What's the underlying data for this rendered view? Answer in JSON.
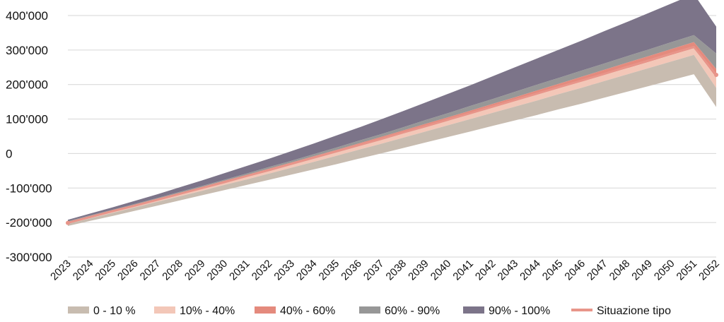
{
  "chart_data": {
    "type": "area",
    "grid": true,
    "legend_position": "bottom",
    "x": [
      2023,
      2024,
      2025,
      2026,
      2027,
      2028,
      2029,
      2030,
      2031,
      2032,
      2033,
      2034,
      2035,
      2036,
      2037,
      2038,
      2039,
      2040,
      2041,
      2042,
      2043,
      2044,
      2045,
      2046,
      2047,
      2048,
      2049,
      2050,
      2051,
      2052
    ],
    "x_tick_labels": [
      "2023",
      "2024",
      "2025",
      "2026",
      "2027",
      "2028",
      "2029",
      "2030",
      "2031",
      "2032",
      "2033",
      "2034",
      "2035",
      "2036",
      "2037",
      "2038",
      "2039",
      "2040",
      "2041",
      "2042",
      "2043",
      "2044",
      "2045",
      "2046",
      "2047",
      "2048",
      "2049",
      "2050",
      "2051",
      "2052"
    ],
    "ylim": [
      -300000,
      400000
    ],
    "y_ticks": [
      -300000,
      -200000,
      -100000,
      0,
      100000,
      200000,
      300000,
      400000
    ],
    "y_tick_labels": [
      "-300'000",
      "-200'000",
      "-100'000",
      "0",
      "100'000",
      "200'000",
      "300'000",
      "400'000"
    ],
    "bands": [
      {
        "name": "90% - 100%",
        "color": "#7c7489",
        "lower": [
          -196000,
          -179000,
          -163000,
          -146000,
          -129000,
          -111000,
          -94000,
          -76000,
          -58000,
          -39000,
          -21000,
          -2000,
          17000,
          37000,
          56000,
          76000,
          97000,
          117000,
          138000,
          158000,
          179000,
          200000,
          220000,
          241000,
          261000,
          282000,
          302000,
          323000,
          343000,
          290000
        ],
        "upper": [
          -192000,
          -174000,
          -156000,
          -137000,
          -118000,
          -98000,
          -78000,
          -57000,
          -36000,
          -15000,
          7000,
          29000,
          52000,
          75000,
          99000,
          123000,
          148000,
          173000,
          198000,
          224000,
          250000,
          276000,
          302000,
          328000,
          355000,
          381000,
          408000,
          435000,
          462000,
          368000
        ]
      },
      {
        "name": "60% - 90%",
        "color": "#979797",
        "lower": [
          -198000,
          -181000,
          -165000,
          -148000,
          -131000,
          -114000,
          -97000,
          -79000,
          -62000,
          -44000,
          -26000,
          -8000,
          10000,
          29000,
          48000,
          67000,
          86000,
          105000,
          124000,
          144000,
          163000,
          183000,
          203000,
          223000,
          243000,
          263000,
          283000,
          303000,
          323000,
          245000
        ],
        "upper": [
          -196000,
          -179000,
          -163000,
          -146000,
          -129000,
          -111000,
          -94000,
          -76000,
          -58000,
          -39000,
          -21000,
          -2000,
          17000,
          37000,
          56000,
          76000,
          97000,
          117000,
          138000,
          158000,
          179000,
          200000,
          220000,
          241000,
          261000,
          282000,
          302000,
          323000,
          343000,
          290000
        ]
      },
      {
        "name": "40% - 60%",
        "color": "#e48a7d",
        "lower": [
          -200000,
          -183000,
          -167000,
          -151000,
          -134000,
          -117000,
          -100000,
          -83000,
          -66000,
          -48000,
          -31000,
          -13000,
          5000,
          23000,
          41000,
          59000,
          77000,
          96000,
          115000,
          133000,
          152000,
          171000,
          190000,
          209000,
          228000,
          247000,
          266000,
          286000,
          305000,
          220000
        ],
        "upper": [
          -198000,
          -181000,
          -165000,
          -148000,
          -131000,
          -114000,
          -97000,
          -79000,
          -62000,
          -44000,
          -26000,
          -8000,
          10000,
          29000,
          48000,
          67000,
          86000,
          105000,
          124000,
          144000,
          163000,
          183000,
          203000,
          223000,
          243000,
          263000,
          283000,
          303000,
          323000,
          245000
        ]
      },
      {
        "name": "10% - 40%",
        "color": "#f3c7b8",
        "lower": [
          -204000,
          -188000,
          -172000,
          -156000,
          -140000,
          -124000,
          -108000,
          -91000,
          -75000,
          -58000,
          -41000,
          -24000,
          -7000,
          11000,
          28000,
          46000,
          64000,
          82000,
          100000,
          118000,
          136000,
          154000,
          173000,
          191000,
          210000,
          229000,
          248000,
          267000,
          286000,
          190000
        ],
        "upper": [
          -200000,
          -183000,
          -167000,
          -151000,
          -134000,
          -117000,
          -100000,
          -83000,
          -66000,
          -48000,
          -31000,
          -13000,
          5000,
          23000,
          41000,
          59000,
          77000,
          96000,
          115000,
          133000,
          152000,
          171000,
          190000,
          209000,
          228000,
          247000,
          266000,
          286000,
          305000,
          220000
        ]
      },
      {
        "name": "0 - 10 %",
        "color": "#c8bcb0",
        "lower": [
          -210000,
          -195000,
          -181000,
          -166000,
          -151000,
          -136000,
          -121000,
          -106000,
          -91000,
          -76000,
          -61000,
          -46000,
          -31000,
          -15000,
          0,
          16000,
          32000,
          48000,
          64000,
          80000,
          96000,
          112000,
          129000,
          145000,
          162000,
          179000,
          196000,
          213000,
          230000,
          135000
        ],
        "upper": [
          -204000,
          -188000,
          -172000,
          -156000,
          -140000,
          -124000,
          -108000,
          -91000,
          -75000,
          -58000,
          -41000,
          -24000,
          -7000,
          11000,
          28000,
          46000,
          64000,
          82000,
          100000,
          118000,
          136000,
          154000,
          173000,
          191000,
          210000,
          229000,
          248000,
          267000,
          286000,
          190000
        ]
      }
    ],
    "series": [
      {
        "name": "Situazione tipo",
        "color": "#e8958a",
        "values": [
          -201000,
          -184000,
          -167000,
          -151000,
          -134000,
          -117000,
          -100000,
          -83000,
          -65000,
          -48000,
          -30000,
          -12000,
          6000,
          24000,
          42000,
          61000,
          79000,
          98000,
          117000,
          136000,
          155000,
          174000,
          193000,
          212000,
          231000,
          251000,
          270000,
          290000,
          309000,
          228000
        ]
      }
    ]
  },
  "legend": [
    {
      "label": "0 - 10 %",
      "color": "#c8bcb0",
      "kind": "band"
    },
    {
      "label": "10% - 40%",
      "color": "#f3c7b8",
      "kind": "band"
    },
    {
      "label": "40% - 60%",
      "color": "#e48a7d",
      "kind": "band"
    },
    {
      "label": "60% - 90%",
      "color": "#979797",
      "kind": "band"
    },
    {
      "label": "90% - 100%",
      "color": "#7c7489",
      "kind": "band"
    },
    {
      "label": "Situazione tipo",
      "color": "#e8958a",
      "kind": "line"
    }
  ]
}
